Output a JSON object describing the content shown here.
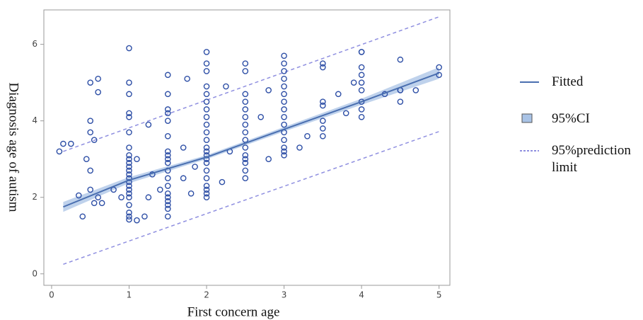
{
  "chart_data": {
    "type": "scatter",
    "x_label": "First concern age",
    "y_label": "Diagnosis age of autism",
    "xlim": [
      -0.1,
      5.14
    ],
    "ylim": [
      -0.3,
      6.9
    ],
    "xticks": [
      0,
      1,
      2,
      3,
      4,
      5
    ],
    "yticks": [
      0,
      2,
      4,
      6
    ],
    "series": [
      {
        "color": "#2e4fa6",
        "x": [
          1,
          1,
          1,
          1,
          1,
          1,
          1,
          1,
          1,
          1,
          1,
          1,
          1,
          1,
          1,
          1,
          1,
          1,
          1,
          1,
          1,
          1,
          1,
          1.5,
          1.5,
          1.5,
          1.5,
          1.5,
          1.5,
          1.5,
          1.5,
          1.5,
          1.5,
          1.5,
          1.5,
          1.5,
          1.5,
          1.5,
          1.5,
          1.5,
          1.5,
          1.5,
          2,
          2,
          2,
          2,
          2,
          2,
          2,
          2,
          2,
          2,
          2,
          2,
          2,
          2,
          2,
          2,
          2,
          2,
          2,
          2,
          2,
          2,
          2.5,
          2.5,
          2.5,
          2.5,
          2.5,
          2.5,
          2.5,
          2.5,
          2.5,
          2.5,
          2.5,
          2.5,
          2.5,
          2.5,
          2.5,
          3,
          3,
          3,
          3,
          3,
          3,
          3,
          3,
          3,
          3,
          3,
          3,
          3,
          3,
          3,
          3.5,
          3.5,
          3.5,
          3.5,
          3.5,
          3.5,
          3.5,
          4,
          4,
          4,
          4,
          4,
          4,
          4,
          4,
          4,
          4.5,
          4.5,
          4.5,
          4.5,
          5,
          5,
          0.1,
          0.15,
          0.25,
          0.35,
          0.4,
          0.45,
          0.5,
          0.5,
          0.5,
          0.5,
          0.5,
          0.55,
          0.6,
          0.6,
          0.6,
          0.65,
          0.8,
          0.9,
          1.1,
          1.1,
          1.2,
          1.25,
          1.25,
          1.3,
          1.4,
          1.7,
          1.7,
          1.75,
          1.8,
          1.85,
          2.2,
          2.25,
          2.3,
          2.7,
          2.8,
          2.8,
          3.3,
          3.2,
          3.7,
          3.8,
          3.9,
          4.3,
          4.7,
          0.55
        ],
        "values": [
          1.42,
          1.5,
          1.6,
          1.8,
          2.0,
          2.1,
          2.2,
          2.3,
          2.4,
          2.5,
          2.6,
          2.7,
          2.8,
          2.9,
          3.0,
          3.1,
          3.3,
          3.7,
          4.1,
          4.2,
          4.7,
          5.0,
          5.9,
          1.5,
          1.7,
          1.8,
          1.9,
          2.0,
          2.1,
          2.3,
          2.5,
          2.7,
          2.9,
          3.0,
          3.1,
          3.2,
          3.6,
          4.0,
          4.2,
          4.3,
          4.7,
          5.2,
          2.0,
          2.1,
          2.2,
          2.3,
          2.5,
          2.7,
          2.9,
          3.0,
          3.1,
          3.2,
          3.3,
          3.5,
          3.7,
          3.9,
          4.1,
          4.3,
          4.5,
          4.7,
          4.9,
          5.3,
          5.5,
          5.8,
          2.5,
          2.7,
          2.9,
          3.0,
          3.1,
          3.3,
          3.5,
          3.7,
          3.9,
          4.1,
          4.3,
          4.5,
          4.7,
          5.3,
          5.5,
          3.1,
          3.2,
          3.3,
          3.5,
          3.7,
          3.9,
          4.1,
          4.3,
          4.5,
          4.7,
          4.9,
          5.1,
          5.3,
          5.5,
          5.7,
          3.6,
          3.8,
          4.0,
          4.4,
          4.5,
          5.4,
          5.5,
          4.1,
          4.3,
          4.5,
          4.8,
          5.0,
          5.2,
          5.4,
          5.8,
          5.8,
          4.5,
          4.8,
          4.8,
          5.6,
          5.2,
          5.4,
          3.2,
          3.4,
          3.4,
          2.05,
          1.5,
          3.0,
          5.0,
          4.0,
          3.7,
          2.7,
          2.2,
          1.85,
          5.1,
          4.75,
          2.0,
          1.85,
          2.2,
          2.0,
          1.4,
          3.0,
          1.5,
          2.0,
          3.9,
          2.6,
          2.2,
          2.5,
          3.3,
          5.1,
          2.1,
          2.8,
          2.4,
          4.9,
          3.2,
          4.1,
          4.8,
          3.0,
          3.6,
          3.3,
          4.7,
          4.2,
          5.0,
          4.7,
          4.8,
          3.5
        ]
      },
      {
        "name": "Fitted",
        "color": "#4a6fb0",
        "x": [
          0.15,
          1,
          2,
          3,
          4,
          5
        ],
        "values": [
          1.75,
          2.45,
          3.05,
          3.78,
          4.5,
          5.25
        ]
      },
      {
        "name": "95%CI",
        "color": "#a9c3e6",
        "x": [
          0.15,
          1,
          2,
          3,
          4,
          5
        ],
        "lower": [
          1.62,
          2.37,
          3.0,
          3.72,
          4.42,
          5.1
        ],
        "upper": [
          1.88,
          2.53,
          3.1,
          3.84,
          4.58,
          5.4
        ]
      },
      {
        "name": "95%prediction limit",
        "color": "#8f8fe0",
        "x": [
          0.15,
          5
        ],
        "lower": [
          0.25,
          3.72
        ],
        "upper": [
          3.2,
          6.72
        ]
      }
    ]
  }
}
